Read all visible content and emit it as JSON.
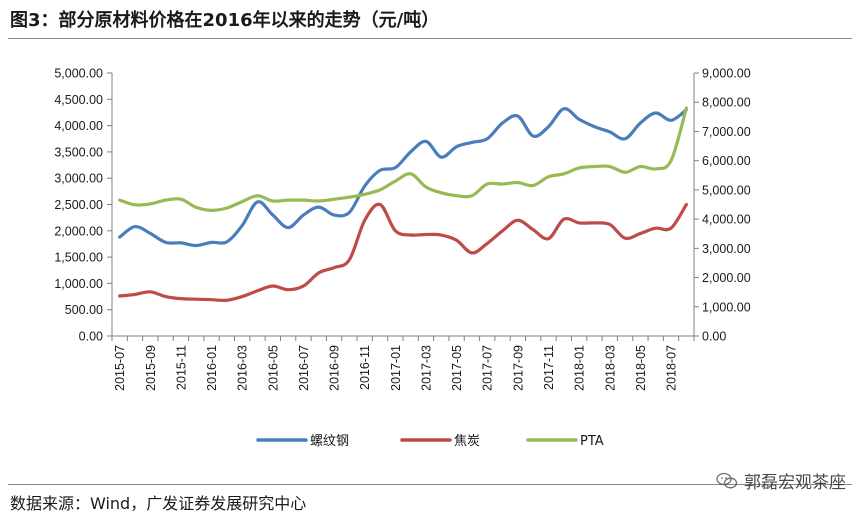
{
  "title": "图3：部分原材料价格在2016年以来的走势（元/吨）",
  "source": "数据来源：Wind，广发证券发展研究中心",
  "watermark": "郭磊宏观茶座",
  "colors": {
    "rebar": "#4a7ebb",
    "coke": "#be4b48",
    "pta": "#98b954",
    "axis": "#808080"
  },
  "chart_data": {
    "type": "line",
    "x": [
      "2015-07",
      "2015-08",
      "2015-09",
      "2015-10",
      "2015-11",
      "2015-12",
      "2016-01",
      "2016-02",
      "2016-03",
      "2016-04",
      "2016-05",
      "2016-06",
      "2016-07",
      "2016-08",
      "2016-09",
      "2016-10",
      "2016-11",
      "2016-12",
      "2017-01",
      "2017-02",
      "2017-03",
      "2017-04",
      "2017-05",
      "2017-06",
      "2017-07",
      "2017-08",
      "2017-09",
      "2017-10",
      "2017-11",
      "2017-12",
      "2018-01",
      "2018-02",
      "2018-03",
      "2018-04",
      "2018-05",
      "2018-06",
      "2018-07",
      "2018-08"
    ],
    "x_tick_labels": [
      "2015-07",
      "2015-09",
      "2015-11",
      "2016-01",
      "2016-03",
      "2016-05",
      "2016-07",
      "2016-09",
      "2016-11",
      "2017-01",
      "2017-03",
      "2017-05",
      "2017-07",
      "2017-09",
      "2017-11",
      "2018-01",
      "2018-03",
      "2018-05",
      "2018-07"
    ],
    "y_left_ticks": [
      "0.00",
      "500.00",
      "1,000.00",
      "1,500.00",
      "2,000.00",
      "2,500.00",
      "3,000.00",
      "3,500.00",
      "4,000.00",
      "4,500.00",
      "5,000.00"
    ],
    "y_right_ticks": [
      "0.00",
      "1,000.00",
      "2,000.00",
      "3,000.00",
      "4,000.00",
      "5,000.00",
      "6,000.00",
      "7,000.00",
      "8,000.00",
      "9,000.00"
    ],
    "y_left_range": [
      0,
      5000
    ],
    "y_right_range": [
      0,
      9000
    ],
    "series": [
      {
        "name": "螺纹钢",
        "axis": "left",
        "values": [
          1880,
          2080,
          1950,
          1780,
          1770,
          1720,
          1780,
          1790,
          2100,
          2550,
          2300,
          2060,
          2300,
          2450,
          2300,
          2350,
          2850,
          3150,
          3200,
          3500,
          3700,
          3400,
          3600,
          3680,
          3750,
          4050,
          4180,
          3800,
          3980,
          4320,
          4120,
          3980,
          3880,
          3750,
          4050,
          4240,
          4100,
          4300
        ]
      },
      {
        "name": "焦炭",
        "axis": "left",
        "values": [
          760,
          790,
          840,
          750,
          710,
          700,
          690,
          680,
          750,
          860,
          950,
          880,
          950,
          1200,
          1300,
          1450,
          2200,
          2500,
          2000,
          1920,
          1930,
          1920,
          1820,
          1580,
          1760,
          2000,
          2200,
          2020,
          1850,
          2220,
          2150,
          2150,
          2120,
          1860,
          1950,
          2050,
          2050,
          2500
        ]
      },
      {
        "name": "PTA",
        "axis": "right",
        "values": [
          4650,
          4490,
          4520,
          4650,
          4680,
          4400,
          4300,
          4380,
          4600,
          4800,
          4620,
          4650,
          4650,
          4620,
          4680,
          4750,
          4850,
          5000,
          5300,
          5550,
          5100,
          4900,
          4800,
          4800,
          5200,
          5200,
          5250,
          5150,
          5450,
          5550,
          5750,
          5800,
          5800,
          5600,
          5800,
          5720,
          6000,
          7800
        ]
      }
    ],
    "legend_position": "bottom"
  }
}
